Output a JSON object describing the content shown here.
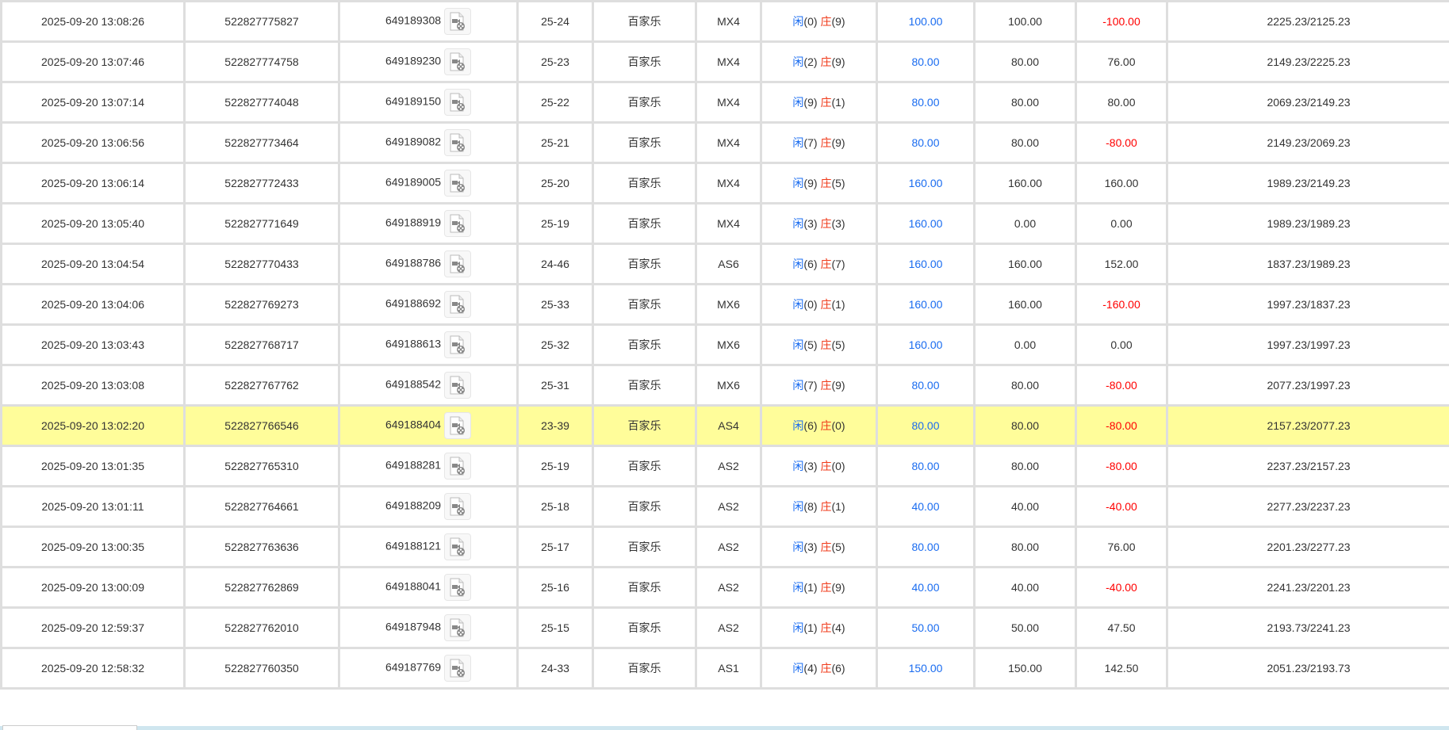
{
  "colors": {
    "highlight": "#fffd9a",
    "blue": "#1a6cf0",
    "red": "#ff0000",
    "border": "#dedede"
  },
  "icon": "video-file-icon",
  "player_label": "闲",
  "banker_label": "庄",
  "rows": [
    {
      "time": "2025-09-20 13:08:26",
      "order": "522827775827",
      "round": "649189308",
      "shoe": "25-24",
      "game": "百家乐",
      "table": "MX4",
      "p": "0",
      "b": "9",
      "bet": "100.00",
      "valid": "100.00",
      "win": "-100.00",
      "balance": "2225.23/2125.23"
    },
    {
      "time": "2025-09-20 13:07:46",
      "order": "522827774758",
      "round": "649189230",
      "shoe": "25-23",
      "game": "百家乐",
      "table": "MX4",
      "p": "2",
      "b": "9",
      "bet": "80.00",
      "valid": "80.00",
      "win": "76.00",
      "balance": "2149.23/2225.23"
    },
    {
      "time": "2025-09-20 13:07:14",
      "order": "522827774048",
      "round": "649189150",
      "shoe": "25-22",
      "game": "百家乐",
      "table": "MX4",
      "p": "9",
      "b": "1",
      "bet": "80.00",
      "valid": "80.00",
      "win": "80.00",
      "balance": "2069.23/2149.23"
    },
    {
      "time": "2025-09-20 13:06:56",
      "order": "522827773464",
      "round": "649189082",
      "shoe": "25-21",
      "game": "百家乐",
      "table": "MX4",
      "p": "7",
      "b": "9",
      "bet": "80.00",
      "valid": "80.00",
      "win": "-80.00",
      "balance": "2149.23/2069.23"
    },
    {
      "time": "2025-09-20 13:06:14",
      "order": "522827772433",
      "round": "649189005",
      "shoe": "25-20",
      "game": "百家乐",
      "table": "MX4",
      "p": "9",
      "b": "5",
      "bet": "160.00",
      "valid": "160.00",
      "win": "160.00",
      "balance": "1989.23/2149.23"
    },
    {
      "time": "2025-09-20 13:05:40",
      "order": "522827771649",
      "round": "649188919",
      "shoe": "25-19",
      "game": "百家乐",
      "table": "MX4",
      "p": "3",
      "b": "3",
      "bet": "160.00",
      "valid": "0.00",
      "win": "0.00",
      "balance": "1989.23/1989.23"
    },
    {
      "time": "2025-09-20 13:04:54",
      "order": "522827770433",
      "round": "649188786",
      "shoe": "24-46",
      "game": "百家乐",
      "table": "AS6",
      "p": "6",
      "b": "7",
      "bet": "160.00",
      "valid": "160.00",
      "win": "152.00",
      "balance": "1837.23/1989.23"
    },
    {
      "time": "2025-09-20 13:04:06",
      "order": "522827769273",
      "round": "649188692",
      "shoe": "25-33",
      "game": "百家乐",
      "table": "MX6",
      "p": "0",
      "b": "1",
      "bet": "160.00",
      "valid": "160.00",
      "win": "-160.00",
      "balance": "1997.23/1837.23"
    },
    {
      "time": "2025-09-20 13:03:43",
      "order": "522827768717",
      "round": "649188613",
      "shoe": "25-32",
      "game": "百家乐",
      "table": "MX6",
      "p": "5",
      "b": "5",
      "bet": "160.00",
      "valid": "0.00",
      "win": "0.00",
      "balance": "1997.23/1997.23"
    },
    {
      "time": "2025-09-20 13:03:08",
      "order": "522827767762",
      "round": "649188542",
      "shoe": "25-31",
      "game": "百家乐",
      "table": "MX6",
      "p": "7",
      "b": "9",
      "bet": "80.00",
      "valid": "80.00",
      "win": "-80.00",
      "balance": "2077.23/1997.23"
    },
    {
      "time": "2025-09-20 13:02:20",
      "order": "522827766546",
      "round": "649188404",
      "shoe": "23-39",
      "game": "百家乐",
      "table": "AS4",
      "p": "6",
      "b": "0",
      "bet": "80.00",
      "valid": "80.00",
      "win": "-80.00",
      "balance": "2157.23/2077.23",
      "highlighted": true
    },
    {
      "time": "2025-09-20 13:01:35",
      "order": "522827765310",
      "round": "649188281",
      "shoe": "25-19",
      "game": "百家乐",
      "table": "AS2",
      "p": "3",
      "b": "0",
      "bet": "80.00",
      "valid": "80.00",
      "win": "-80.00",
      "balance": "2237.23/2157.23"
    },
    {
      "time": "2025-09-20 13:01:11",
      "order": "522827764661",
      "round": "649188209",
      "shoe": "25-18",
      "game": "百家乐",
      "table": "AS2",
      "p": "8",
      "b": "1",
      "bet": "40.00",
      "valid": "40.00",
      "win": "-40.00",
      "balance": "2277.23/2237.23"
    },
    {
      "time": "2025-09-20 13:00:35",
      "order": "522827763636",
      "round": "649188121",
      "shoe": "25-17",
      "game": "百家乐",
      "table": "AS2",
      "p": "3",
      "b": "5",
      "bet": "80.00",
      "valid": "80.00",
      "win": "76.00",
      "balance": "2201.23/2277.23"
    },
    {
      "time": "2025-09-20 13:00:09",
      "order": "522827762869",
      "round": "649188041",
      "shoe": "25-16",
      "game": "百家乐",
      "table": "AS2",
      "p": "1",
      "b": "9",
      "bet": "40.00",
      "valid": "40.00",
      "win": "-40.00",
      "balance": "2241.23/2201.23"
    },
    {
      "time": "2025-09-20 12:59:37",
      "order": "522827762010",
      "round": "649187948",
      "shoe": "25-15",
      "game": "百家乐",
      "table": "AS2",
      "p": "1",
      "b": "4",
      "bet": "50.00",
      "valid": "50.00",
      "win": "47.50",
      "balance": "2193.73/2241.23"
    },
    {
      "time": "2025-09-20 12:58:32",
      "order": "522827760350",
      "round": "649187769",
      "shoe": "24-33",
      "game": "百家乐",
      "table": "AS1",
      "p": "4",
      "b": "6",
      "bet": "150.00",
      "valid": "150.00",
      "win": "142.50",
      "balance": "2051.23/2193.73"
    }
  ]
}
